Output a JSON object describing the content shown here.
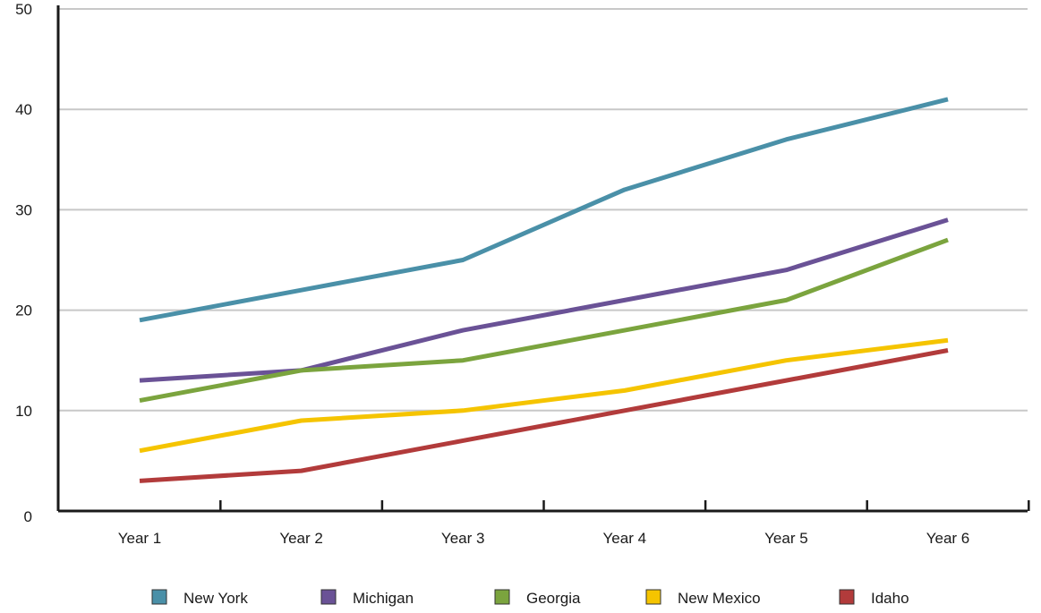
{
  "chart_data": {
    "type": "line",
    "title": "",
    "xlabel": "",
    "ylabel": "",
    "categories": [
      "Year 1",
      "Year 2",
      "Year 3",
      "Year 4",
      "Year 5",
      "Year 6"
    ],
    "ylim": [
      0,
      50
    ],
    "yticks": [
      "0",
      "10",
      "20",
      "30",
      "40",
      "50"
    ],
    "grid": true,
    "legend_position": "bottom",
    "series": [
      {
        "name": "New York",
        "color": "#4a90a8",
        "values": [
          19,
          22,
          25,
          32,
          37,
          41
        ]
      },
      {
        "name": "Michigan",
        "color": "#6a5296",
        "values": [
          13,
          14,
          18,
          21,
          24,
          29
        ]
      },
      {
        "name": "Georgia",
        "color": "#7ba43e",
        "values": [
          11,
          14,
          15,
          18,
          21,
          27
        ]
      },
      {
        "name": "New Mexico",
        "color": "#f5c400",
        "values": [
          6,
          9,
          10,
          12,
          15,
          17
        ]
      },
      {
        "name": "Idaho",
        "color": "#b23b3b",
        "values": [
          3,
          4,
          7,
          10,
          13,
          16
        ]
      }
    ]
  }
}
